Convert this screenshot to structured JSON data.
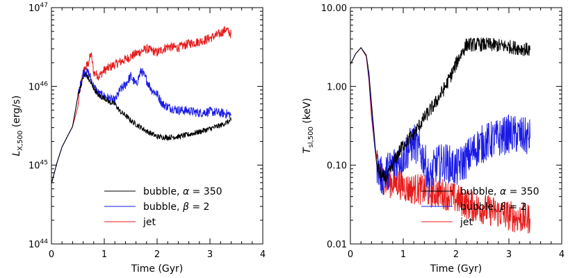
{
  "colors": {
    "bubble_alpha": "#000000",
    "bubble_beta": "#1a1ae6",
    "jet": "#e61a1a"
  },
  "chart_data": [
    {
      "type": "line",
      "xlabel": "Time (Gyr)",
      "ylabel_main": "L",
      "ylabel_sub": "X,500",
      "ylabel_unit": " (erg/s)",
      "xlim": [
        0,
        4
      ],
      "ylim": [
        1e+44,
        1e+47
      ],
      "yscale": "log",
      "xticks": [
        "0",
        "1",
        "2",
        "3",
        "4"
      ],
      "yticks": [
        {
          "value": 1e+44,
          "base": "10",
          "exp": "44"
        },
        {
          "value": 1e+45,
          "base": "10",
          "exp": "45"
        },
        {
          "value": 1e+46,
          "base": "10",
          "exp": "46"
        },
        {
          "value": 1e+47,
          "base": "10",
          "exp": "47"
        }
      ],
      "legend_position": "bottom-right",
      "series": [
        {
          "key": "bubble_alpha",
          "name_prefix": "bubble, ",
          "name_symbol": "α",
          "name_suffix": " = 350",
          "noise": 0.035,
          "x": [
            0.0,
            0.1,
            0.2,
            0.3,
            0.4,
            0.5,
            0.6,
            0.65,
            0.7,
            0.8,
            0.9,
            1.0,
            1.1,
            1.2,
            1.3,
            1.4,
            1.5,
            1.6,
            1.7,
            1.8,
            1.9,
            2.0,
            2.2,
            2.4,
            2.6,
            2.8,
            3.0,
            3.2,
            3.4
          ],
          "y": [
            5.8e+44,
            1.05e+45,
            1.7e+45,
            2.3e+45,
            3.1e+45,
            7.5e+45,
            1.3e+46,
            1.45e+46,
            1.25e+46,
            9.5e+45,
            7.5e+45,
            7.2e+45,
            6.3e+45,
            6e+45,
            4.8e+45,
            4.3e+45,
            3.7e+45,
            3.3e+45,
            3e+45,
            2.7e+45,
            2.5e+45,
            2.3e+45,
            2.25e+45,
            2.3e+45,
            2.45e+45,
            2.65e+45,
            2.9e+45,
            3.2e+45,
            3.7e+45
          ]
        },
        {
          "key": "bubble_beta",
          "name_prefix": "bubble, ",
          "name_symbol": "β",
          "name_suffix": " = 2",
          "noise": 0.06,
          "x": [
            0.0,
            0.1,
            0.2,
            0.3,
            0.4,
            0.5,
            0.6,
            0.7,
            0.8,
            0.9,
            1.0,
            1.1,
            1.2,
            1.3,
            1.4,
            1.5,
            1.6,
            1.7,
            1.8,
            1.9,
            2.0,
            2.1,
            2.2,
            2.4,
            2.6,
            2.8,
            3.0,
            3.2,
            3.4
          ],
          "y": [
            5.8e+44,
            1.05e+45,
            1.7e+45,
            2.3e+45,
            3.1e+45,
            7.5e+45,
            1.5e+46,
            1.5e+46,
            1e+46,
            8e+45,
            7.5e+45,
            7e+45,
            6.5e+45,
            9e+45,
            1.05e+46,
            1.35e+46,
            1.05e+46,
            1.6e+46,
            1.2e+46,
            9e+45,
            8e+45,
            6e+45,
            5.5e+45,
            5e+45,
            4.9e+45,
            4.6e+45,
            4.8e+45,
            4.6e+45,
            4.4e+45
          ]
        },
        {
          "key": "jet",
          "name_prefix": "jet",
          "name_symbol": "",
          "name_suffix": "",
          "noise": 0.06,
          "x": [
            0.0,
            0.1,
            0.2,
            0.3,
            0.4,
            0.5,
            0.55,
            0.6,
            0.7,
            0.75,
            0.8,
            0.9,
            1.0,
            1.2,
            1.4,
            1.6,
            1.8,
            2.0,
            2.2,
            2.4,
            2.6,
            2.8,
            3.0,
            3.2,
            3.3,
            3.4
          ],
          "y": [
            5.8e+44,
            1.05e+45,
            1.7e+45,
            2.3e+45,
            3.1e+45,
            5.5e+45,
            1e+46,
            1.5e+46,
            2e+46,
            2.6e+46,
            1.5e+46,
            1.35e+46,
            1.6e+46,
            1.9e+46,
            2.2e+46,
            2.6e+46,
            3e+46,
            2.7e+46,
            3.2e+46,
            3.1e+46,
            3.5e+46,
            3.7e+46,
            4.1e+46,
            4.7e+46,
            5.3e+46,
            4.6e+46
          ]
        }
      ]
    },
    {
      "type": "line",
      "xlabel": "Time (Gyr)",
      "ylabel_main": "T",
      "ylabel_sub": "sl,500",
      "ylabel_unit": " (keV)",
      "xlim": [
        0,
        4
      ],
      "ylim": [
        0.01,
        10
      ],
      "yscale": "log",
      "xticks": [
        "0",
        "1",
        "2",
        "3",
        "4"
      ],
      "yticks": [
        {
          "value": 0.01,
          "label": "0.01"
        },
        {
          "value": 0.1,
          "label": "0.10"
        },
        {
          "value": 1,
          "label": "1.00"
        },
        {
          "value": 10,
          "label": "10.00"
        }
      ],
      "legend_position": "bottom-right",
      "series": [
        {
          "key": "bubble_alpha",
          "name_prefix": "bubble, ",
          "name_symbol": "α",
          "name_suffix": " = 350",
          "noise": 0.09,
          "x": [
            0.0,
            0.1,
            0.2,
            0.3,
            0.35,
            0.4,
            0.45,
            0.5,
            0.55,
            0.6,
            0.7,
            0.8,
            0.9,
            1.0,
            1.2,
            1.4,
            1.6,
            1.8,
            1.95,
            2.05,
            2.2,
            2.6,
            3.0,
            3.4
          ],
          "y": [
            1.9,
            2.6,
            3.1,
            2.5,
            1.5,
            0.6,
            0.25,
            0.1,
            0.08,
            0.07,
            0.07,
            0.1,
            0.14,
            0.18,
            0.25,
            0.4,
            0.6,
            1.0,
            1.6,
            2.3,
            3.4,
            3.4,
            3.2,
            2.9
          ]
        },
        {
          "key": "bubble_beta",
          "name_prefix": "bubble, ",
          "name_symbol": "β",
          "name_suffix": " = 2",
          "noise": 0.25,
          "x": [
            0.0,
            0.1,
            0.2,
            0.3,
            0.35,
            0.4,
            0.45,
            0.5,
            0.55,
            0.6,
            0.8,
            1.0,
            1.2,
            1.4,
            1.5,
            1.6,
            1.8,
            2.0,
            2.2,
            2.4,
            2.6,
            2.8,
            3.0,
            3.2,
            3.4
          ],
          "y": [
            1.9,
            2.6,
            3.1,
            2.5,
            1.3,
            0.5,
            0.2,
            0.1,
            0.08,
            0.07,
            0.1,
            0.13,
            0.2,
            0.12,
            0.06,
            0.1,
            0.11,
            0.09,
            0.12,
            0.17,
            0.2,
            0.22,
            0.25,
            0.24,
            0.22
          ]
        },
        {
          "key": "jet",
          "name_prefix": "jet",
          "name_symbol": "",
          "name_suffix": "",
          "noise": 0.2,
          "x": [
            0.0,
            0.1,
            0.2,
            0.3,
            0.35,
            0.4,
            0.45,
            0.5,
            0.6,
            0.7,
            0.9,
            1.1,
            1.3,
            1.5,
            1.7,
            1.9,
            2.1,
            2.3,
            2.5,
            2.7,
            2.9,
            3.1,
            3.3,
            3.4
          ],
          "y": [
            1.9,
            2.6,
            3.1,
            2.4,
            1.2,
            0.4,
            0.2,
            0.12,
            0.07,
            0.06,
            0.06,
            0.05,
            0.05,
            0.045,
            0.045,
            0.04,
            0.035,
            0.03,
            0.028,
            0.026,
            0.024,
            0.022,
            0.021,
            0.021
          ]
        }
      ]
    }
  ]
}
